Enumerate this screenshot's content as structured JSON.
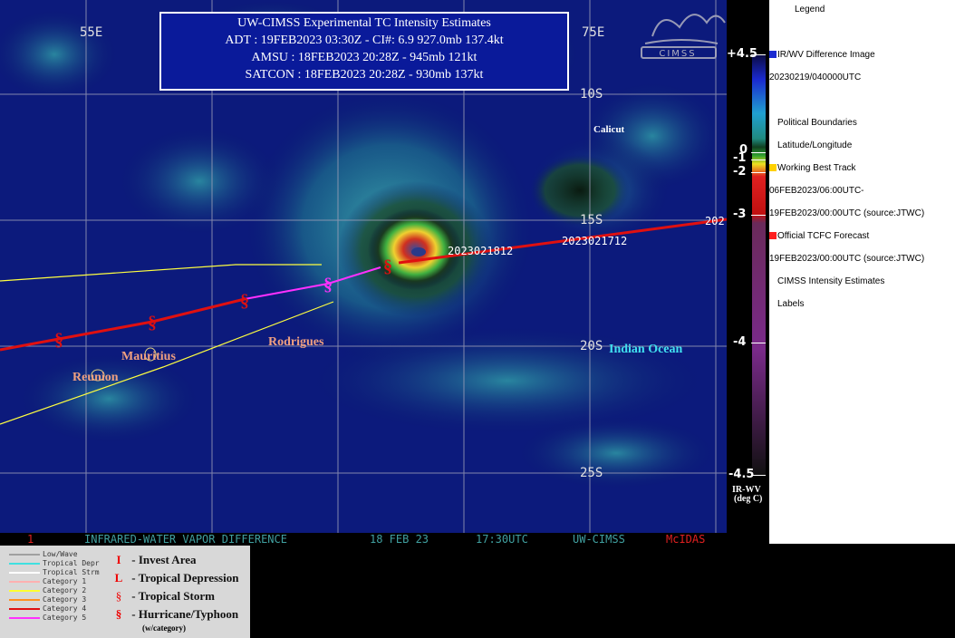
{
  "title_box": {
    "title": "UW-CIMSS Experimental TC Intensity Estimates",
    "adt": "ADT : 19FEB2023 03:30Z -  CI#: 6.9  927.0mb  137.4kt",
    "amsu": "AMSU : 18FEB2023 20:28Z -   945mb  121kt",
    "satcon": "SATCON : 18FEB2023 20:28Z -  930mb  137kt"
  },
  "grid_labels": {
    "lon_55e": "55E",
    "lon_75e": "75E",
    "lat_10s": "10S",
    "lat_15s": "15S",
    "lat_20s": "20S",
    "lat_25s": "25S"
  },
  "place_labels": {
    "calicut": "Calicut",
    "indian_ocean": "Indian Ocean",
    "rodrigues": "Rodrigues",
    "mauritius": "Mauritius",
    "reunion": "Reunion"
  },
  "track_labels": {
    "t1": "2023021812",
    "t2": "2023021712",
    "t3": "202"
  },
  "bottom_strip": {
    "frame": "1",
    "product": "INFRARED-WATER VAPOR DIFFERENCE",
    "date": "18 FEB 23",
    "time": "17:30UTC",
    "source": "UW-CIMSS",
    "software": "McIDAS"
  },
  "colorbar": {
    "ticks": [
      "+4.5",
      "0",
      "-1",
      "-2",
      "-3",
      "-4",
      "-4.5"
    ],
    "unit_line1": "IR-WV",
    "unit_line2": "(deg C)"
  },
  "legend": {
    "title": "Legend",
    "items": [
      "IR/WV Difference Image",
      "20230219/040000UTC",
      "Political Boundaries",
      "Latitude/Longitude",
      "Working Best Track",
      "06FEB2023/06:00UTC-",
      "19FEB2023/00:00UTC    (source:JTWC)",
      "Official TCFC Forecast",
      "19FEB2023/00:00UTC  (source:JTWC)",
      "CIMSS Intensity Estimates",
      "Labels"
    ],
    "colors": {
      "diff_image": "#1a2ad0",
      "political": "#ffffff",
      "latlon": "#ffffff",
      "best_track": "#ffd000",
      "forecast": "#ff2020",
      "cimss": "#ffffff",
      "labels": "#ffffff"
    }
  },
  "track_key": {
    "categories": [
      {
        "label": "Low/Wave",
        "color": "#a0a0a0"
      },
      {
        "label": "Tropical Depr",
        "color": "#40e0e0"
      },
      {
        "label": "Tropical Strm",
        "color": "#ffffff"
      },
      {
        "label": "Category 1",
        "color": "#ffb0b0"
      },
      {
        "label": "Category 2",
        "color": "#ffff30"
      },
      {
        "label": "Category 3",
        "color": "#ff9020"
      },
      {
        "label": "Category 4",
        "color": "#e01010"
      },
      {
        "label": "Category 5",
        "color": "#ff30ff"
      }
    ],
    "symbols": [
      {
        "glyph": "I",
        "label": "- Invest Area"
      },
      {
        "glyph": "L",
        "label": "- Tropical Depression"
      },
      {
        "glyph": "§",
        "label": "- Tropical Storm"
      },
      {
        "glyph": "§",
        "label": "- Hurricane/Typhoon"
      }
    ],
    "subnote": "(w/category)"
  }
}
